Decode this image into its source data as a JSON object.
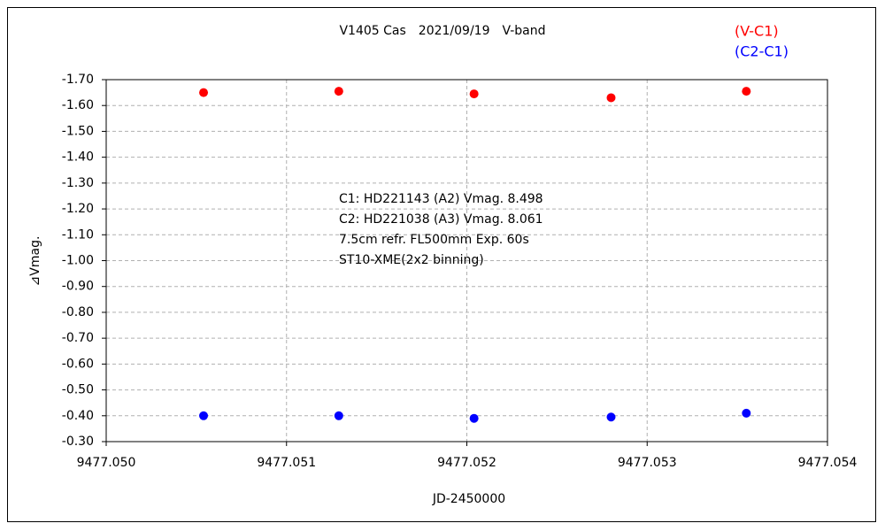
{
  "chart_data": {
    "type": "scatter",
    "title": "V1405 Cas　2021/09/19　V-band",
    "x_label": "JD-2450000",
    "y_label": "⊿Vmag.",
    "annotations": [
      "C1: HD221143 (A2) Vmag. 8.498",
      "C2: HD221038 (A3) Vmag. 8.061",
      "7.5cm refr. FL500mm Exp. 60s",
      "ST10-XME(2x2 binning)"
    ],
    "x": [
      9477.05054,
      9477.05129,
      9477.05204,
      9477.0528,
      9477.05355
    ],
    "series": [
      {
        "name": "(V-C1)",
        "color": "#ff0000",
        "values": [
          -1.65,
          -1.655,
          -1.645,
          -1.63,
          -1.655
        ]
      },
      {
        "name": "(C2-C1)",
        "color": "#0000ff",
        "values": [
          -0.4,
          -0.4,
          -0.39,
          -0.395,
          -0.41
        ]
      }
    ],
    "xlim": [
      9477.05,
      9477.054
    ],
    "xticks": [
      {
        "value": 9477.05,
        "label": "9477.050"
      },
      {
        "value": 9477.051,
        "label": "9477.051"
      },
      {
        "value": 9477.052,
        "label": "9477.052"
      },
      {
        "value": 9477.053,
        "label": "9477.053"
      },
      {
        "value": 9477.054,
        "label": "9477.054"
      }
    ],
    "ylim": [
      -0.3,
      -1.7
    ],
    "yticks": [
      {
        "value": -0.3,
        "label": "-0.30"
      },
      {
        "value": -0.4,
        "label": "-0.40"
      },
      {
        "value": -0.5,
        "label": "-0.50"
      },
      {
        "value": -0.6,
        "label": "-0.60"
      },
      {
        "value": -0.7,
        "label": "-0.70"
      },
      {
        "value": -0.8,
        "label": "-0.80"
      },
      {
        "value": -0.9,
        "label": "-0.90"
      },
      {
        "value": -1.0,
        "label": "-1.00"
      },
      {
        "value": -1.1,
        "label": "-1.10"
      },
      {
        "value": -1.2,
        "label": "-1.20"
      },
      {
        "value": -1.3,
        "label": "-1.30"
      },
      {
        "value": -1.4,
        "label": "-1.40"
      },
      {
        "value": -1.5,
        "label": "-1.50"
      },
      {
        "value": -1.6,
        "label": "-1.60"
      },
      {
        "value": -1.7,
        "label": "-1.70"
      }
    ],
    "grid": true,
    "legend_position": "top-right"
  }
}
